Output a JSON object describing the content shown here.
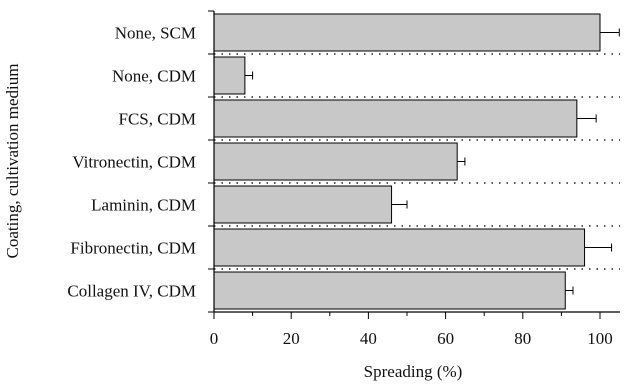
{
  "chart_data": {
    "type": "bar",
    "orientation": "horizontal",
    "categories": [
      "None, SCM",
      "None, CDM",
      "FCS, CDM",
      "Vitronectin, CDM",
      "Laminin, CDM",
      "Fibronectin, CDM",
      "Collagen IV, CDM"
    ],
    "values": [
      100,
      8,
      94,
      63,
      46,
      96,
      91
    ],
    "errors": [
      5,
      2,
      5,
      2,
      4,
      7,
      2
    ],
    "xlabel": "Spreading (%)",
    "ylabel": "Coating, cultivation medium",
    "xlim": [
      0,
      107
    ],
    "xticks": [
      0,
      20,
      40,
      60,
      80,
      100
    ],
    "xtick_labels": [
      "0",
      "20",
      "40",
      "60",
      "80",
      "100"
    ],
    "bar_color": "#c8c8c8",
    "grid": "dotted separators between categories"
  }
}
